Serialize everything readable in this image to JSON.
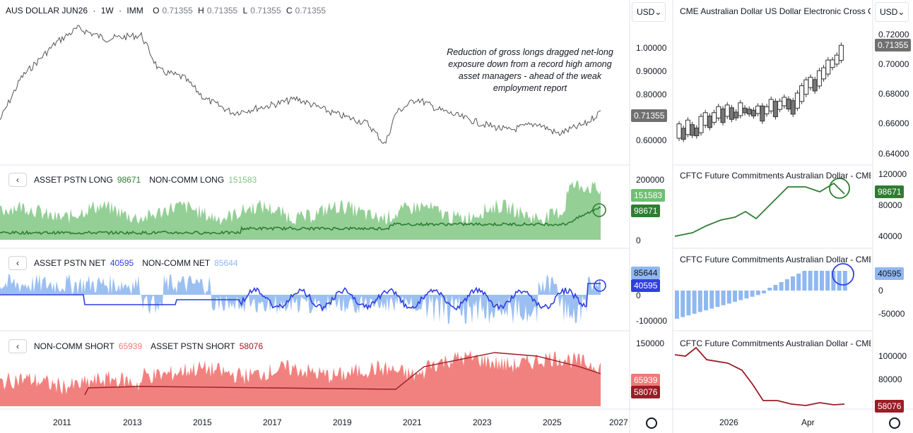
{
  "main_chart": {
    "symbol": "AUS DOLLAR JUN26",
    "interval": "1W",
    "exchange": "IMM",
    "ohlc": {
      "O": "0.71355",
      "H": "0.71355",
      "L": "0.71355",
      "C": "0.71355"
    },
    "price_ticks": [
      "1.00000",
      "0.90000",
      "0.80000",
      "0.60000"
    ],
    "last_price": "0.71355",
    "annotation": "Reduction of gross longs dragged net-long exposure down from a record high among asset managers - ahead of the weak employment report"
  },
  "pane_long": {
    "label_a": "ASSET PSTN LONG",
    "value_a": "98671",
    "label_b": "NON-COMM LONG",
    "value_b": "151583",
    "ticks": [
      "200000",
      "0"
    ],
    "badge_b": "151583",
    "badge_a": "98671"
  },
  "pane_net": {
    "label_a": "ASSET PSTN NET",
    "value_a": "40595",
    "label_b": "NON-COMM NET",
    "value_b": "85644",
    "ticks": [
      "0",
      "-100000"
    ],
    "badge_b": "85644",
    "badge_a": "40595"
  },
  "pane_short": {
    "label_a": "NON-COMM SHORT",
    "value_a": "65939",
    "label_b": "ASSET PSTN SHORT",
    "value_b": "58076",
    "ticks": [
      "150000"
    ],
    "badge_a": "65939",
    "badge_b": "58076"
  },
  "x_axis": [
    "2011",
    "2013",
    "2015",
    "2017",
    "2019",
    "2021",
    "2023",
    "2025",
    "2027"
  ],
  "currency_selector": "USD",
  "right_panel": {
    "price_title": "CME Australian Dollar US Dollar Electronic Cross C",
    "price_ticks": [
      "0.72000",
      "0.70000",
      "0.68000",
      "0.66000",
      "0.64000"
    ],
    "last_price": "0.71355",
    "long_title": "CFTC Future Commitments Australian Dollar - CME",
    "long_ticks": [
      "120000",
      "80000",
      "40000"
    ],
    "long_badge": "98671",
    "net_title": "CFTC Future Commitments Australian Dollar - CME",
    "net_ticks": [
      "0",
      "-50000"
    ],
    "net_badge": "40595",
    "short_title": "CFTC Future Commitments Australian Dollar - CME",
    "short_ticks": [
      "100000",
      "80000"
    ],
    "short_badge": "58076",
    "x_axis": [
      "2026",
      "Apr"
    ]
  },
  "colors": {
    "asset_long": "#2e7d32",
    "noncomm_long": "#81c784",
    "asset_net": "#2f3fe0",
    "noncomm_net": "#90b8f0",
    "noncomm_short": "#f07a78",
    "asset_short": "#9c1c25",
    "price_badge": "#707070"
  }
}
